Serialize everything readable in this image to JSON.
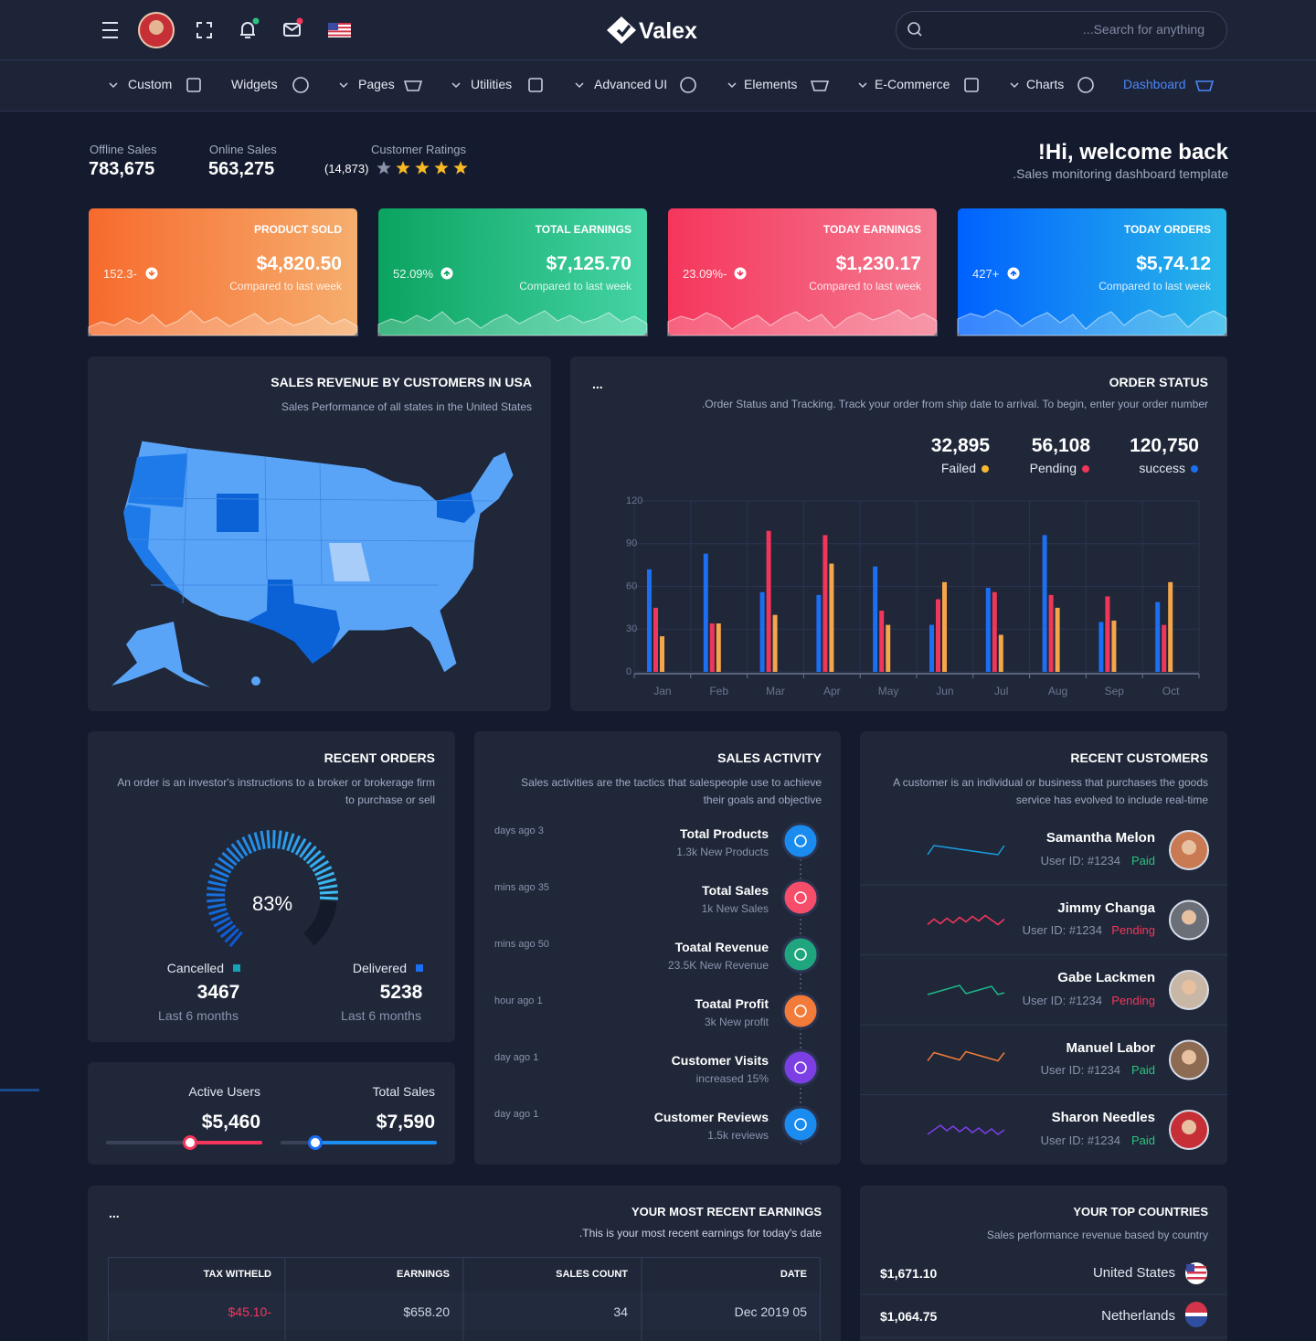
{
  "header": {
    "brand": "Valex",
    "search_placeholder": "...Search for anything"
  },
  "nav": [
    "Custom",
    "Widgets",
    "Pages",
    "Utilities",
    "Advanced UI",
    "Elements",
    "E-Commerce",
    "Charts",
    "Dashboard"
  ],
  "stats": [
    {
      "label": "Offline Sales",
      "value": "783,675"
    },
    {
      "label": "Online Sales",
      "value": "563,275"
    }
  ],
  "ratings": {
    "label": "Customer Ratings",
    "count": "(14,873)"
  },
  "welcome": {
    "title": "!Hi, welcome back",
    "subtitle": ".Sales monitoring dashboard template"
  },
  "kpis": [
    {
      "title": "PRODUCT SOLD",
      "value": "$4,820.50",
      "change": "152.3-",
      "note": "Compared to last week"
    },
    {
      "title": "TOTAL EARNINGS",
      "value": "$7,125.70",
      "change": "52.09%",
      "note": "Compared to last week"
    },
    {
      "title": "TODAY EARNINGS",
      "value": "$1,230.17",
      "change": "23.09%-",
      "note": "Compared to last week"
    },
    {
      "title": "TODAY ORDERS",
      "value": "$5,74.12",
      "change": "427+",
      "note": "Compared to last week"
    }
  ],
  "map": {
    "title": "SALES REVENUE BY CUSTOMERS IN USA",
    "subtitle": "Sales Performance of all states in the United States"
  },
  "order_status": {
    "menu": "...",
    "title": "ORDER STATUS",
    "subtitle": ".Order Status and Tracking. Track your order from ship date to arrival. To begin, enter your order number"
  },
  "chart_data": {
    "type": "bar",
    "categories": [
      "Jan",
      "Feb",
      "Mar",
      "Apr",
      "May",
      "Jun",
      "Jul",
      "Aug",
      "Sep",
      "Oct"
    ],
    "series": [
      {
        "name": "success",
        "total": "120,750",
        "color": "#1c6ef2",
        "values": [
          72,
          83,
          56,
          54,
          74,
          33,
          59,
          96,
          35,
          49
        ]
      },
      {
        "name": "Pending",
        "total": "56,108",
        "color": "#f0365a",
        "values": [
          45,
          34,
          99,
          96,
          43,
          51,
          56,
          54,
          53,
          33
        ]
      },
      {
        "name": "Failed",
        "total": "32,895",
        "color": "#f5a54a",
        "values": [
          25,
          34,
          40,
          76,
          33,
          63,
          26,
          45,
          36,
          63
        ]
      }
    ],
    "ylim": [
      0,
      120
    ],
    "yticks": [
      0,
      30,
      60,
      90,
      120
    ],
    "grid": true
  },
  "recent_orders": {
    "title": "RECENT ORDERS",
    "subtitle": "An order is an investor's instructions to a broker or brokerage firm to purchase or sell",
    "gauge": "83%",
    "groups": [
      {
        "label": "Cancelled",
        "value": "3467",
        "period": "Last 6 months"
      },
      {
        "label": "Delivered",
        "value": "5238",
        "period": "Last 6 months"
      }
    ]
  },
  "users": [
    {
      "label": "Active Users",
      "value": "$5,460"
    },
    {
      "label": "Total Sales",
      "value": "$7,590"
    }
  ],
  "activity": {
    "title": "SALES ACTIVITY",
    "subtitle": "Sales activities are the tactics that salespeople use to achieve their goals and objective",
    "items": [
      {
        "time": "days ago 3",
        "title": "Total Products",
        "detail": "1.3k New Products"
      },
      {
        "time": "mins ago 35",
        "title": "Total Sales",
        "detail": "1k New Sales"
      },
      {
        "time": "mins ago 50",
        "title": "Toatal Revenue",
        "detail": "23.5K New Revenue"
      },
      {
        "time": "hour ago 1",
        "title": "Toatal Profit",
        "detail": "3k New profit"
      },
      {
        "time": "day ago 1",
        "title": "Customer Visits",
        "detail": "increased 15%"
      },
      {
        "time": "day ago 1",
        "title": "Customer Reviews",
        "detail": "1.5k reviews"
      }
    ]
  },
  "customers": {
    "title": "RECENT CUSTOMERS",
    "subtitle": "A customer is an individual or business that purchases the goods service has evolved to include real-time",
    "items": [
      {
        "name": "Samantha Melon",
        "id": "User ID: #1234",
        "status": "Paid"
      },
      {
        "name": "Jimmy Changa",
        "id": "User ID: #1234",
        "status": "Pending"
      },
      {
        "name": "Gabe Lackmen",
        "id": "User ID: #1234",
        "status": "Pending"
      },
      {
        "name": "Manuel Labor",
        "id": "User ID: #1234",
        "status": "Paid"
      },
      {
        "name": "Sharon Needles",
        "id": "User ID: #1234",
        "status": "Paid"
      }
    ]
  },
  "earnings": {
    "menu": "...",
    "title": "YOUR MOST RECENT EARNINGS",
    "subtitle": ".This is your most recent earnings for today's date",
    "columns": [
      "TAX WITHELD",
      "EARNINGS",
      "SALES COUNT",
      "DATE"
    ],
    "rows": [
      [
        "$45.10-",
        "$658.20",
        "34",
        "Dec 2019 05"
      ]
    ]
  },
  "countries": {
    "title": "YOUR TOP COUNTRIES",
    "subtitle": "Sales performance revenue based by country",
    "items": [
      {
        "amount": "$1,671.10",
        "country": "United States"
      },
      {
        "amount": "$1,064.75",
        "country": "Netherlands"
      }
    ]
  }
}
